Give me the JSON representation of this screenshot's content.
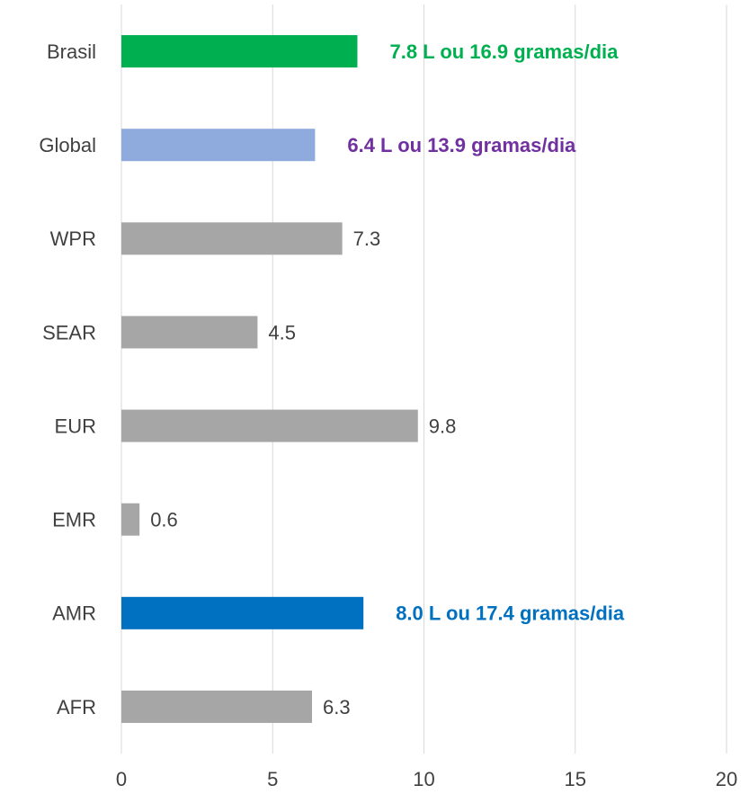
{
  "chart_data": {
    "type": "bar",
    "orientation": "horizontal",
    "categories": [
      "Brasil",
      "Global",
      "WPR",
      "SEAR",
      "EUR",
      "EMR",
      "AMR",
      "AFR"
    ],
    "values": [
      7.8,
      6.4,
      7.3,
      4.5,
      9.8,
      0.6,
      8,
      6.3
    ],
    "value_labels": [
      "7.8 L ou 16.9 gramas/dia",
      "6.4 L ou 13.9 gramas/dia",
      "7.3",
      "4.5",
      "9.8",
      "0.6",
      "8.0 L ou 17.4 gramas/dia",
      "6.3"
    ],
    "colors": [
      "#00b050",
      "#8faadc",
      "#a6a6a6",
      "#a6a6a6",
      "#a6a6a6",
      "#a6a6a6",
      "#0070c0",
      "#a6a6a6"
    ],
    "label_colors": [
      "#00b050",
      "#7030a0",
      "#404040",
      "#404040",
      "#404040",
      "#404040",
      "#0070c0",
      "#404040"
    ],
    "label_bold": [
      true,
      true,
      false,
      false,
      false,
      false,
      true,
      false
    ],
    "xlim": [
      0,
      20
    ],
    "xticks": [
      0,
      5,
      10,
      15,
      20
    ],
    "grid": true
  }
}
